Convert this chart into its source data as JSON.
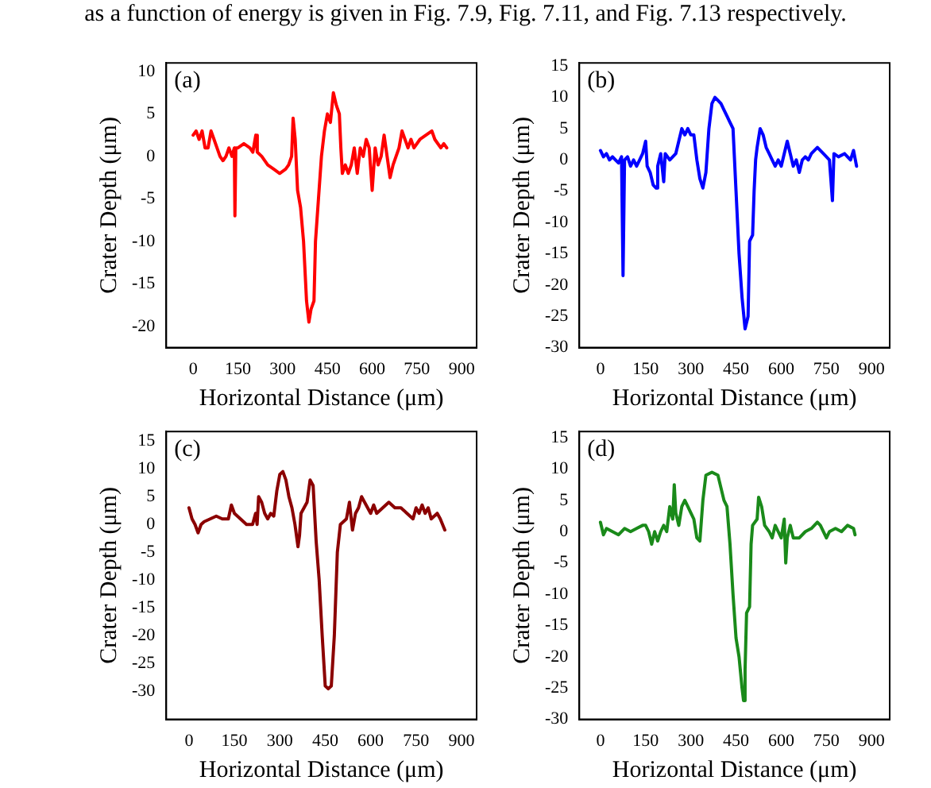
{
  "chart_data": [
    {
      "type": "line",
      "title": "(a)",
      "xlabel": "Horizontal Distance (μm)",
      "ylabel": "Crater Depth (μm)",
      "color": "#ff0000",
      "annotations": [
        "as a function of energy is given in Fig. 7.9, Fig. 7.11, and Fig. 7.13 respectively."
      ],
      "xlim": [
        -90,
        950
      ],
      "xticks": [
        0,
        150,
        300,
        450,
        600,
        750,
        900
      ],
      "ylim": [
        -22.5,
        11
      ],
      "yticks": [
        -20,
        -15,
        -10,
        -5,
        0,
        5,
        10
      ],
      "x": [
        0,
        10,
        20,
        30,
        40,
        50,
        60,
        70,
        80,
        90,
        100,
        110,
        120,
        130,
        138,
        140,
        143,
        150,
        170,
        190,
        200,
        210,
        215,
        230,
        250,
        270,
        290,
        310,
        320,
        330,
        335,
        342,
        350,
        360,
        370,
        380,
        388,
        395,
        405,
        410,
        420,
        430,
        440,
        450,
        460,
        470,
        480,
        490,
        495,
        500,
        510,
        520,
        530,
        540,
        550,
        560,
        570,
        580,
        590,
        600,
        610,
        620,
        630,
        640,
        650,
        660,
        670,
        680,
        690,
        700,
        710,
        720,
        730,
        740,
        760,
        780,
        800,
        810,
        830,
        840,
        850
      ],
      "values": [
        2.5,
        3,
        2,
        3,
        1,
        1,
        3,
        2,
        1,
        0,
        -0.5,
        0,
        1,
        0,
        1,
        -7,
        1,
        1,
        1.5,
        1,
        0.5,
        2.5,
        0.5,
        0,
        -1,
        -1.5,
        -2,
        -1.5,
        -1,
        0,
        4.5,
        2,
        -4,
        -6,
        -10,
        -17,
        -19.5,
        -18,
        -17,
        -10,
        -5,
        0,
        3,
        5,
        4,
        7.5,
        6,
        5,
        1,
        -2,
        -1,
        -2,
        -1,
        1,
        -2,
        1,
        0,
        2,
        1,
        -4,
        1,
        -1,
        0,
        2.5,
        0,
        -2.5,
        -1,
        0,
        1,
        3,
        2,
        1,
        2,
        1,
        2,
        2.5,
        3,
        2,
        1,
        1.5,
        1
      ]
    },
    {
      "type": "line",
      "title": "(b)",
      "xlabel": "Horizontal Distance (μm)",
      "ylabel": "Crater Depth (μm)",
      "color": "#0000ff",
      "xlim": [
        -70,
        960
      ],
      "xticks": [
        0,
        150,
        300,
        450,
        600,
        750,
        900
      ],
      "ylim": [
        -30,
        15.5
      ],
      "yticks": [
        -30,
        -25,
        -20,
        -15,
        -10,
        -5,
        0,
        5,
        10,
        15
      ],
      "x": [
        0,
        10,
        20,
        30,
        40,
        50,
        60,
        70,
        75,
        80,
        90,
        100,
        110,
        120,
        130,
        140,
        150,
        155,
        165,
        175,
        185,
        190,
        200,
        210,
        215,
        230,
        250,
        260,
        270,
        280,
        290,
        300,
        310,
        320,
        330,
        340,
        350,
        360,
        370,
        380,
        390,
        400,
        410,
        420,
        430,
        440,
        450,
        460,
        470,
        480,
        490,
        495,
        505,
        510,
        515,
        520,
        530,
        540,
        550,
        560,
        570,
        580,
        590,
        600,
        610,
        620,
        630,
        640,
        650,
        660,
        670,
        680,
        690,
        700,
        720,
        740,
        760,
        770,
        775,
        790,
        810,
        830,
        840,
        850
      ],
      "values": [
        1.5,
        0.5,
        1,
        0,
        0.5,
        0,
        -0.5,
        0.5,
        -18.5,
        0,
        0.5,
        -1,
        0,
        -1,
        0,
        1,
        3,
        -1,
        -2,
        -4,
        -4.5,
        -1,
        1,
        -3.5,
        1,
        0,
        1,
        3,
        5,
        4,
        5,
        4,
        4,
        0,
        -3,
        -4.5,
        -2,
        5,
        9,
        10,
        9.5,
        9,
        8,
        7,
        6,
        5,
        -5,
        -15,
        -22,
        -27,
        -25,
        -13,
        -12,
        -5,
        0,
        2,
        5,
        4,
        2,
        1,
        0,
        -1,
        0,
        -1,
        1,
        3,
        1,
        -1,
        0,
        -2,
        0,
        0.5,
        0,
        1,
        2,
        1,
        0,
        -6.5,
        1,
        0.5,
        1,
        0,
        1.5,
        -1
      ]
    },
    {
      "type": "line",
      "title": "(c)",
      "xlabel": "Horizontal Distance (μm)",
      "ylabel": "Crater Depth (μm)",
      "color": "#8b0000",
      "xlim": [
        -75,
        950
      ],
      "xticks": [
        0,
        150,
        300,
        450,
        600,
        750,
        900
      ],
      "ylim": [
        -35,
        16.7
      ],
      "yticks": [
        -30,
        -25,
        -20,
        -15,
        -10,
        -5,
        0,
        5,
        10,
        15
      ],
      "x": [
        0,
        10,
        20,
        30,
        40,
        50,
        70,
        90,
        110,
        130,
        140,
        150,
        170,
        190,
        210,
        220,
        225,
        230,
        240,
        250,
        260,
        270,
        280,
        290,
        300,
        310,
        320,
        330,
        340,
        350,
        360,
        365,
        370,
        380,
        390,
        400,
        410,
        420,
        430,
        440,
        450,
        460,
        470,
        480,
        490,
        500,
        510,
        520,
        530,
        540,
        550,
        560,
        570,
        580,
        590,
        600,
        610,
        620,
        630,
        640,
        660,
        680,
        700,
        720,
        740,
        750,
        760,
        770,
        780,
        790,
        800,
        820,
        830,
        845
      ],
      "values": [
        3,
        1,
        0,
        -1.5,
        0,
        0.5,
        1,
        1.5,
        1,
        1,
        3.5,
        2,
        1,
        0,
        0,
        2,
        0,
        5,
        4,
        2,
        1,
        2,
        1.5,
        6,
        9,
        9.5,
        8,
        5,
        3,
        0,
        -4,
        -2,
        2,
        3,
        4,
        8,
        7,
        -3,
        -10,
        -20,
        -29,
        -29.5,
        -29,
        -20,
        -5,
        0,
        0.5,
        1,
        4,
        -1,
        2,
        3,
        5,
        4,
        3,
        2,
        3.5,
        2,
        2.5,
        3,
        4,
        3,
        3,
        2,
        1,
        3,
        2,
        3.5,
        2,
        3,
        1,
        2,
        1,
        -1
      ]
    },
    {
      "type": "line",
      "title": "(d)",
      "xlabel": "Horizontal Distance (μm)",
      "ylabel": "Crater Depth (μm)",
      "color": "#1a8a1a",
      "xlim": [
        -70,
        960
      ],
      "xticks": [
        0,
        150,
        300,
        450,
        600,
        750,
        900
      ],
      "ylim": [
        -30,
        16
      ],
      "yticks": [
        -30,
        -25,
        -20,
        -15,
        -10,
        -5,
        0,
        5,
        10,
        15
      ],
      "x": [
        0,
        10,
        20,
        40,
        60,
        80,
        100,
        120,
        140,
        150,
        160,
        170,
        180,
        190,
        200,
        210,
        220,
        230,
        240,
        245,
        250,
        260,
        270,
        280,
        290,
        300,
        310,
        320,
        330,
        340,
        350,
        370,
        390,
        400,
        410,
        420,
        430,
        440,
        450,
        460,
        470,
        475,
        480,
        485,
        495,
        500,
        505,
        520,
        525,
        535,
        545,
        560,
        570,
        580,
        590,
        600,
        610,
        615,
        620,
        630,
        640,
        660,
        680,
        700,
        720,
        730,
        750,
        760,
        780,
        800,
        820,
        840,
        845
      ],
      "values": [
        1.5,
        -0.5,
        0.5,
        0,
        -0.5,
        0.5,
        0,
        0.5,
        1,
        1,
        0,
        -2,
        0,
        -1.5,
        0,
        1,
        0,
        4,
        2,
        7.5,
        3,
        1,
        4,
        5,
        4,
        3,
        2,
        -1,
        -1.5,
        5,
        9,
        9.5,
        9,
        7,
        5,
        4,
        -2,
        -10,
        -17,
        -20,
        -25,
        -27,
        -22,
        -13,
        -12,
        -2,
        1,
        2,
        5.5,
        4,
        1,
        0,
        -1,
        1,
        0,
        -1,
        2,
        -5,
        -1,
        1,
        -1,
        -1,
        0,
        0.5,
        1.5,
        1,
        -1,
        0,
        0.5,
        0,
        1,
        0.5,
        -0.5
      ]
    }
  ]
}
